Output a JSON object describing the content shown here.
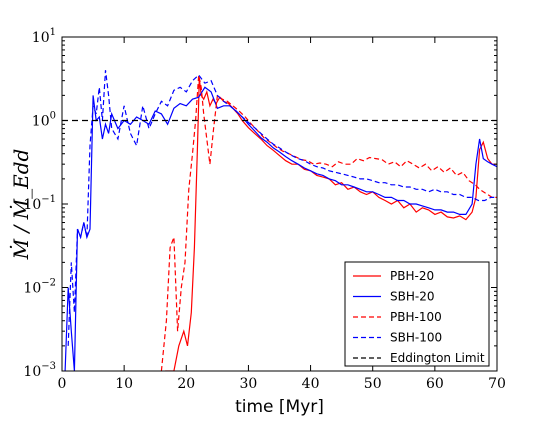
{
  "chart_data": {
    "type": "line",
    "xlabel": "time [Myr]",
    "ylabel": "Ṁ / Ṁ_Edd",
    "xlim": [
      0,
      70
    ],
    "ylim": [
      0.001,
      10
    ],
    "yscale": "log",
    "xticks": [
      0,
      10,
      20,
      30,
      40,
      50,
      60,
      70
    ],
    "xtick_labels": [
      "0",
      "10",
      "20",
      "30",
      "40",
      "50",
      "60",
      "70"
    ],
    "yticks": [
      0.001,
      0.01,
      0.1,
      1,
      10
    ],
    "ytick_labels": [
      {
        "base": "10",
        "exp": "−3"
      },
      {
        "base": "10",
        "exp": "−2"
      },
      {
        "base": "10",
        "exp": "−1"
      },
      {
        "base": "10",
        "exp": "0"
      },
      {
        "base": "10",
        "exp": "1"
      }
    ],
    "grid": false,
    "legend_position": "bottom-right",
    "series": [
      {
        "name": "PBH-20",
        "color": "#ff0000",
        "style": "solid",
        "x": [
          16.6,
          18.0,
          18.8,
          19.6,
          20.2,
          20.8,
          21.3,
          21.8,
          22.1,
          22.4,
          22.8,
          23.3,
          23.8,
          24.3,
          24.8,
          25.4,
          26.0,
          26.8,
          27.5,
          28.3,
          29.0,
          30.0,
          31.0,
          32.0,
          33.0,
          34.0,
          35.0,
          36.0,
          37.0,
          38.0,
          39.0,
          40.0,
          41.0,
          42.0,
          43.0,
          44.0,
          45.0,
          46.0,
          47.0,
          48.0,
          49.0,
          50.0,
          51.0,
          52.0,
          53.0,
          54.0,
          55.0,
          56.0,
          57.0,
          58.0,
          59.0,
          60.0,
          61.0,
          62.0,
          63.0,
          64.0,
          65.0,
          66.0,
          66.6,
          67.2,
          67.8,
          68.5,
          69.2,
          70.0
        ],
        "y": [
          0.001,
          0.001,
          0.002,
          0.003,
          0.002,
          0.005,
          0.03,
          0.5,
          3.2,
          2.0,
          1.8,
          2.2,
          1.5,
          1.8,
          1.6,
          1.9,
          1.7,
          1.6,
          1.4,
          1.2,
          1.0,
          0.82,
          0.7,
          0.6,
          0.5,
          0.44,
          0.38,
          0.33,
          0.3,
          0.3,
          0.26,
          0.25,
          0.22,
          0.21,
          0.2,
          0.17,
          0.18,
          0.15,
          0.16,
          0.14,
          0.13,
          0.14,
          0.12,
          0.11,
          0.1,
          0.11,
          0.09,
          0.1,
          0.08,
          0.09,
          0.085,
          0.075,
          0.08,
          0.07,
          0.068,
          0.072,
          0.065,
          0.08,
          0.12,
          0.45,
          0.55,
          0.35,
          0.3,
          0.3
        ]
      },
      {
        "name": "SBH-20",
        "color": "#0000ff",
        "style": "solid",
        "x": [
          0.5,
          1.0,
          1.5,
          2.0,
          2.5,
          3.0,
          3.5,
          4.0,
          4.5,
          5.0,
          5.5,
          6.0,
          6.5,
          7.0,
          7.5,
          8.0,
          9.0,
          10.0,
          11.0,
          12.0,
          13.0,
          14.0,
          15.0,
          16.0,
          17.0,
          18.0,
          19.0,
          20.0,
          21.0,
          22.0,
          23.0,
          24.0,
          25.0,
          26.0,
          27.0,
          28.0,
          29.0,
          30.0,
          31.0,
          32.0,
          33.0,
          34.0,
          35.0,
          36.0,
          37.0,
          38.0,
          39.0,
          40.0,
          41.0,
          42.0,
          43.0,
          44.0,
          45.0,
          46.0,
          47.0,
          48.0,
          49.0,
          50.0,
          51.0,
          52.0,
          53.0,
          54.0,
          55.0,
          56.0,
          57.0,
          58.0,
          59.0,
          60.0,
          61.0,
          62.0,
          63.0,
          64.0,
          65.0,
          66.0,
          66.6,
          67.2,
          67.8,
          68.5,
          69.2,
          70.0
        ],
        "y": [
          0.001,
          0.01,
          0.003,
          0.001,
          0.05,
          0.04,
          0.06,
          0.04,
          0.05,
          2.0,
          1.0,
          1.1,
          0.6,
          0.9,
          0.7,
          1.2,
          0.8,
          1.0,
          0.9,
          1.1,
          1.0,
          0.9,
          1.3,
          1.2,
          0.9,
          1.4,
          1.6,
          1.5,
          1.8,
          1.9,
          2.5,
          2.2,
          1.4,
          1.5,
          1.5,
          1.3,
          1.1,
          0.9,
          0.75,
          0.62,
          0.55,
          0.47,
          0.42,
          0.37,
          0.33,
          0.3,
          0.27,
          0.25,
          0.23,
          0.22,
          0.2,
          0.19,
          0.17,
          0.17,
          0.16,
          0.15,
          0.14,
          0.14,
          0.13,
          0.12,
          0.12,
          0.11,
          0.11,
          0.1,
          0.1,
          0.095,
          0.09,
          0.085,
          0.085,
          0.08,
          0.08,
          0.075,
          0.075,
          0.1,
          0.3,
          0.6,
          0.35,
          0.32,
          0.3,
          0.28
        ]
      },
      {
        "name": "PBH-100",
        "color": "#ff0000",
        "style": "dashed",
        "x": [
          16.0,
          16.8,
          17.4,
          18.0,
          18.6,
          19.2,
          19.8,
          20.4,
          21.0,
          21.5,
          22.0,
          22.4,
          22.8,
          23.3,
          23.8,
          24.4,
          25.0,
          25.8,
          26.6,
          27.5,
          28.5,
          29.5,
          30.5,
          31.5,
          32.5,
          33.5,
          34.5,
          35.5,
          36.5,
          37.5,
          38.5,
          39.5,
          40.5,
          41.5,
          42.5,
          43.5,
          44.5,
          45.5,
          46.5,
          47.5,
          48.5,
          49.5,
          50.5,
          51.5,
          52.5,
          53.5,
          54.5,
          55.5,
          56.5,
          57.5,
          58.5,
          59.5,
          60.5,
          61.5,
          62.5,
          63.5,
          64.5,
          65.5,
          66.5,
          67.2,
          67.8,
          68.5,
          69.2,
          70.0
        ],
        "y": [
          0.001,
          0.004,
          0.03,
          0.04,
          0.003,
          0.01,
          0.02,
          0.15,
          0.4,
          1.0,
          3.5,
          2.5,
          1.2,
          0.6,
          0.3,
          0.8,
          2.0,
          1.8,
          1.7,
          1.5,
          1.3,
          1.1,
          0.9,
          0.75,
          0.62,
          0.55,
          0.48,
          0.43,
          0.4,
          0.37,
          0.34,
          0.33,
          0.3,
          0.31,
          0.3,
          0.28,
          0.32,
          0.3,
          0.3,
          0.35,
          0.33,
          0.36,
          0.35,
          0.34,
          0.3,
          0.32,
          0.28,
          0.33,
          0.3,
          0.27,
          0.3,
          0.25,
          0.28,
          0.24,
          0.27,
          0.22,
          0.24,
          0.19,
          0.17,
          0.15,
          0.14,
          0.13,
          0.12,
          0.12
        ]
      },
      {
        "name": "SBH-100",
        "color": "#0000ff",
        "style": "dashed",
        "x": [
          1.0,
          1.5,
          2.0,
          2.5,
          3.0,
          3.5,
          4.0,
          4.5,
          5.0,
          5.5,
          6.0,
          6.5,
          7.0,
          7.5,
          8.0,
          9.0,
          10.0,
          11.0,
          12.0,
          13.0,
          14.0,
          15.0,
          16.0,
          17.0,
          18.0,
          19.0,
          20.0,
          21.0,
          22.0,
          23.0,
          24.0,
          25.0,
          26.0,
          27.0,
          28.0,
          29.0,
          30.0,
          31.0,
          32.0,
          33.0,
          34.0,
          35.0,
          36.0,
          37.0,
          38.0,
          39.0,
          40.0,
          41.0,
          42.0,
          43.0,
          44.0,
          45.0,
          46.0,
          47.0,
          48.0,
          49.0,
          50.0,
          51.0,
          52.0,
          53.0,
          54.0,
          55.0,
          56.0,
          57.0,
          58.0,
          59.0,
          60.0,
          61.0,
          62.0,
          63.0,
          64.0,
          65.0,
          66.0,
          67.0,
          68.0,
          69.0,
          70.0
        ],
        "y": [
          0.002,
          0.02,
          0.005,
          0.05,
          0.04,
          0.06,
          0.04,
          0.5,
          1.5,
          1.2,
          2.5,
          1.0,
          4.0,
          2.0,
          0.8,
          0.6,
          1.5,
          0.7,
          0.5,
          1.5,
          0.8,
          1.2,
          1.7,
          1.5,
          2.3,
          2.5,
          2.2,
          3.0,
          3.5,
          2.8,
          3.0,
          2.0,
          1.7,
          1.5,
          1.3,
          1.1,
          0.95,
          0.82,
          0.7,
          0.6,
          0.52,
          0.47,
          0.42,
          0.38,
          0.35,
          0.33,
          0.3,
          0.28,
          0.27,
          0.25,
          0.24,
          0.23,
          0.22,
          0.21,
          0.2,
          0.2,
          0.19,
          0.18,
          0.18,
          0.17,
          0.17,
          0.16,
          0.16,
          0.15,
          0.15,
          0.14,
          0.15,
          0.14,
          0.14,
          0.13,
          0.13,
          0.12,
          0.12,
          0.11,
          0.11,
          0.12,
          0.12
        ]
      },
      {
        "name": "Eddington Limit",
        "color": "#000000",
        "style": "dashed",
        "x": [
          0,
          70
        ],
        "y": [
          1,
          1
        ]
      }
    ]
  }
}
